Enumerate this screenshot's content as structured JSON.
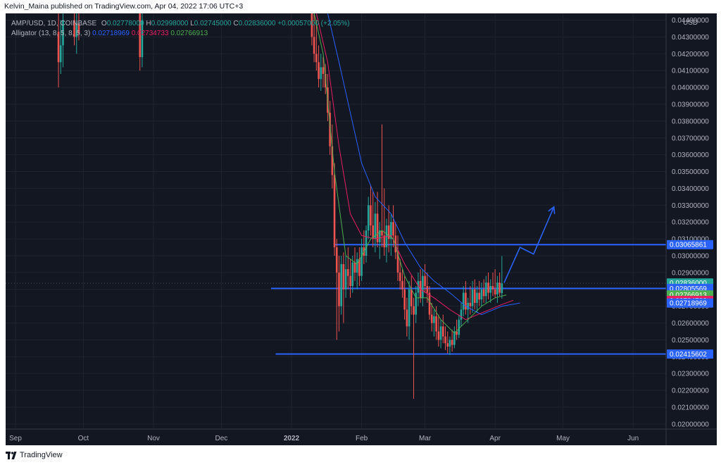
{
  "header": {
    "published": "Kelvin_Maina published on TradingView.com, Apr 04, 2022 17:06 UTC+3"
  },
  "legend": {
    "symbol": "AMP/USD, 1D, COINBASE",
    "open_label": "O",
    "open": "0.02778000",
    "high_label": "H",
    "high": "0.02998000",
    "low_label": "L",
    "low": "0.02745000",
    "close_label": "C",
    "close": "0.02836000",
    "change": "+0.00057000 (+2.05%)",
    "indicator": "Alligator (13, 8, 5, 8, 5, 3)",
    "jaw": "0.02718969",
    "teeth": "0.02734733",
    "lips": "0.02766913"
  },
  "footer": {
    "brand": "TradingView"
  },
  "colors": {
    "background": "#131722",
    "up": "#26a69a",
    "down": "#ef5350",
    "jaw": "#2962ff",
    "teeth": "#e91e63",
    "lips": "#4caf50",
    "drawing": "#2962ff"
  },
  "chart_data": {
    "type": "candlestick",
    "currency": "USD",
    "ylim": [
      0.0197,
      0.0444
    ],
    "ytick_labels": [
      "0.02000000",
      "0.02100000",
      "0.02200000",
      "0.02300000",
      "0.02400000",
      "0.02500000",
      "0.02600000",
      "0.02700000",
      "0.02800000",
      "0.02900000",
      "0.03000000",
      "0.03100000",
      "0.03200000",
      "0.03300000",
      "0.03400000",
      "0.03500000",
      "0.03600000",
      "0.03700000",
      "0.03800000",
      "0.03900000",
      "0.04000000",
      "0.04100000",
      "0.04200000",
      "0.04300000",
      "0.04400000"
    ],
    "x_ticks": [
      {
        "label": "Sep",
        "date": "2021-09-01"
      },
      {
        "label": "Oct",
        "date": "2021-10-01"
      },
      {
        "label": "Nov",
        "date": "2021-11-01"
      },
      {
        "label": "Dec",
        "date": "2021-12-01"
      },
      {
        "label": "2022",
        "date": "2022-01-01"
      },
      {
        "label": "Feb",
        "date": "2022-02-01"
      },
      {
        "label": "Mar",
        "date": "2022-03-01"
      },
      {
        "label": "Apr",
        "date": "2022-04-01"
      },
      {
        "label": "May",
        "date": "2022-05-01"
      },
      {
        "label": "Jun",
        "date": "2022-06-01"
      }
    ],
    "price_labels": [
      {
        "text": "0.03065861",
        "value": 0.03065861,
        "color": "#2962ff"
      },
      {
        "text": "0.02836000",
        "sub": "09:53:12",
        "value": 0.02836,
        "color": "#26a69a"
      },
      {
        "text": "0.02805569",
        "value": 0.02805569,
        "color": "#2962ff"
      },
      {
        "text": "0.02766913",
        "value": 0.02766913,
        "color": "#4caf50"
      },
      {
        "text": "0.02734733",
        "value": 0.02734733,
        "color": "#e91e63"
      },
      {
        "text": "0.02718969",
        "value": 0.02718969,
        "color": "#2962ff"
      },
      {
        "text": "0.02415602",
        "value": 0.02415602,
        "color": "#2962ff"
      }
    ],
    "horizontal_lines": [
      {
        "value": 0.03065861,
        "from": "2022-01-20",
        "to_edge": true
      },
      {
        "value": 0.02805569,
        "from": "2021-12-23",
        "to_edge": true
      },
      {
        "value": 0.02415602,
        "from": "2021-12-25",
        "to_edge": true
      }
    ],
    "projection_path": [
      {
        "date": "2022-04-05",
        "value": 0.0284
      },
      {
        "date": "2022-04-12",
        "value": 0.0305
      },
      {
        "date": "2022-04-18",
        "value": 0.0301
      },
      {
        "date": "2022-04-27",
        "value": 0.0329
      }
    ],
    "candles": [
      {
        "d": "2021-09-20",
        "o": 0.0433,
        "h": 0.0444,
        "l": 0.04,
        "c": 0.0415
      },
      {
        "d": "2021-09-21",
        "o": 0.0415,
        "h": 0.044,
        "l": 0.0408,
        "c": 0.0425
      },
      {
        "d": "2021-09-22",
        "o": 0.0425,
        "h": 0.0444,
        "l": 0.0412,
        "c": 0.044
      },
      {
        "d": "2021-09-27",
        "o": 0.044,
        "h": 0.0444,
        "l": 0.0425,
        "c": 0.043
      },
      {
        "d": "2021-09-28",
        "o": 0.043,
        "h": 0.0444,
        "l": 0.042,
        "c": 0.0438
      },
      {
        "d": "2021-09-29",
        "o": 0.0438,
        "h": 0.0444,
        "l": 0.0428,
        "c": 0.0432
      },
      {
        "d": "2021-10-26",
        "o": 0.0444,
        "h": 0.0444,
        "l": 0.041,
        "c": 0.0418
      },
      {
        "d": "2021-10-27",
        "o": 0.0418,
        "h": 0.0444,
        "l": 0.0412,
        "c": 0.044
      },
      {
        "d": "2022-01-10",
        "o": 0.0444,
        "h": 0.0444,
        "l": 0.0425,
        "c": 0.043
      },
      {
        "d": "2022-01-11",
        "o": 0.043,
        "h": 0.0444,
        "l": 0.0415,
        "c": 0.042
      },
      {
        "d": "2022-01-12",
        "o": 0.042,
        "h": 0.044,
        "l": 0.041,
        "c": 0.0415
      },
      {
        "d": "2022-01-13",
        "o": 0.0415,
        "h": 0.0425,
        "l": 0.04,
        "c": 0.0405
      },
      {
        "d": "2022-01-14",
        "o": 0.0405,
        "h": 0.042,
        "l": 0.0398,
        "c": 0.0412
      },
      {
        "d": "2022-01-15",
        "o": 0.0412,
        "h": 0.0418,
        "l": 0.04,
        "c": 0.0408
      },
      {
        "d": "2022-01-16",
        "o": 0.0408,
        "h": 0.0414,
        "l": 0.0396,
        "c": 0.04
      },
      {
        "d": "2022-01-17",
        "o": 0.04,
        "h": 0.0408,
        "l": 0.038,
        "c": 0.0385
      },
      {
        "d": "2022-01-18",
        "o": 0.0385,
        "h": 0.0392,
        "l": 0.036,
        "c": 0.0365
      },
      {
        "d": "2022-01-19",
        "o": 0.0365,
        "h": 0.0378,
        "l": 0.034,
        "c": 0.0348
      },
      {
        "d": "2022-01-20",
        "o": 0.0348,
        "h": 0.0355,
        "l": 0.03,
        "c": 0.0305
      },
      {
        "d": "2022-01-21",
        "o": 0.0305,
        "h": 0.031,
        "l": 0.025,
        "c": 0.029
      },
      {
        "d": "2022-01-22",
        "o": 0.029,
        "h": 0.03,
        "l": 0.0255,
        "c": 0.027
      },
      {
        "d": "2022-01-23",
        "o": 0.027,
        "h": 0.03,
        "l": 0.0265,
        "c": 0.0295
      },
      {
        "d": "2022-01-24",
        "o": 0.0295,
        "h": 0.0302,
        "l": 0.026,
        "c": 0.028
      },
      {
        "d": "2022-01-25",
        "o": 0.028,
        "h": 0.03,
        "l": 0.0275,
        "c": 0.0292
      },
      {
        "d": "2022-01-26",
        "o": 0.0292,
        "h": 0.0305,
        "l": 0.028,
        "c": 0.0288
      },
      {
        "d": "2022-01-27",
        "o": 0.0288,
        "h": 0.0298,
        "l": 0.0275,
        "c": 0.0282
      },
      {
        "d": "2022-01-28",
        "o": 0.0282,
        "h": 0.03,
        "l": 0.0278,
        "c": 0.0296
      },
      {
        "d": "2022-01-29",
        "o": 0.0296,
        "h": 0.0305,
        "l": 0.0285,
        "c": 0.029
      },
      {
        "d": "2022-01-30",
        "o": 0.029,
        "h": 0.0302,
        "l": 0.028,
        "c": 0.0298
      },
      {
        "d": "2022-01-31",
        "o": 0.0298,
        "h": 0.0305,
        "l": 0.0282,
        "c": 0.0288
      },
      {
        "d": "2022-02-01",
        "o": 0.0288,
        "h": 0.031,
        "l": 0.0285,
        "c": 0.0305
      },
      {
        "d": "2022-02-02",
        "o": 0.0305,
        "h": 0.0315,
        "l": 0.0295,
        "c": 0.03
      },
      {
        "d": "2022-02-03",
        "o": 0.03,
        "h": 0.0318,
        "l": 0.0296,
        "c": 0.0315
      },
      {
        "d": "2022-02-04",
        "o": 0.0315,
        "h": 0.0335,
        "l": 0.031,
        "c": 0.033
      },
      {
        "d": "2022-02-05",
        "o": 0.033,
        "h": 0.0342,
        "l": 0.0312,
        "c": 0.0318
      },
      {
        "d": "2022-02-06",
        "o": 0.0318,
        "h": 0.0338,
        "l": 0.0305,
        "c": 0.031
      },
      {
        "d": "2022-02-07",
        "o": 0.031,
        "h": 0.0332,
        "l": 0.0302,
        "c": 0.0325
      },
      {
        "d": "2022-02-08",
        "o": 0.0325,
        "h": 0.0338,
        "l": 0.0305,
        "c": 0.0308
      },
      {
        "d": "2022-02-09",
        "o": 0.0308,
        "h": 0.032,
        "l": 0.0298,
        "c": 0.0315
      },
      {
        "d": "2022-02-10",
        "o": 0.0315,
        "h": 0.0378,
        "l": 0.0305,
        "c": 0.0312
      },
      {
        "d": "2022-02-11",
        "o": 0.0312,
        "h": 0.034,
        "l": 0.03,
        "c": 0.0305
      },
      {
        "d": "2022-02-12",
        "o": 0.0305,
        "h": 0.0322,
        "l": 0.0296,
        "c": 0.0318
      },
      {
        "d": "2022-02-13",
        "o": 0.0318,
        "h": 0.033,
        "l": 0.0302,
        "c": 0.031
      },
      {
        "d": "2022-02-14",
        "o": 0.031,
        "h": 0.0325,
        "l": 0.03,
        "c": 0.032
      },
      {
        "d": "2022-02-15",
        "o": 0.032,
        "h": 0.033,
        "l": 0.0305,
        "c": 0.0312
      },
      {
        "d": "2022-02-16",
        "o": 0.0312,
        "h": 0.032,
        "l": 0.0298,
        "c": 0.0302
      },
      {
        "d": "2022-02-17",
        "o": 0.0302,
        "h": 0.0312,
        "l": 0.0285,
        "c": 0.029
      },
      {
        "d": "2022-02-18",
        "o": 0.029,
        "h": 0.0298,
        "l": 0.028,
        "c": 0.0285
      },
      {
        "d": "2022-02-19",
        "o": 0.0285,
        "h": 0.0292,
        "l": 0.0275,
        "c": 0.028
      },
      {
        "d": "2022-02-20",
        "o": 0.028,
        "h": 0.0288,
        "l": 0.0262,
        "c": 0.0268
      },
      {
        "d": "2022-02-21",
        "o": 0.0268,
        "h": 0.0275,
        "l": 0.0252,
        "c": 0.0258
      },
      {
        "d": "2022-02-22",
        "o": 0.0258,
        "h": 0.0285,
        "l": 0.025,
        "c": 0.028
      },
      {
        "d": "2022-02-23",
        "o": 0.028,
        "h": 0.0288,
        "l": 0.0265,
        "c": 0.027
      },
      {
        "d": "2022-02-24",
        "o": 0.027,
        "h": 0.0275,
        "l": 0.0215,
        "c": 0.0265
      },
      {
        "d": "2022-02-25",
        "o": 0.0265,
        "h": 0.0282,
        "l": 0.026,
        "c": 0.0278
      },
      {
        "d": "2022-02-26",
        "o": 0.0278,
        "h": 0.029,
        "l": 0.027,
        "c": 0.0285
      },
      {
        "d": "2022-02-27",
        "o": 0.0285,
        "h": 0.0292,
        "l": 0.0272,
        "c": 0.0275
      },
      {
        "d": "2022-02-28",
        "o": 0.0275,
        "h": 0.0292,
        "l": 0.027,
        "c": 0.0288
      },
      {
        "d": "2022-03-01",
        "o": 0.0288,
        "h": 0.0295,
        "l": 0.0278,
        "c": 0.0282
      },
      {
        "d": "2022-03-02",
        "o": 0.0282,
        "h": 0.029,
        "l": 0.0272,
        "c": 0.0278
      },
      {
        "d": "2022-03-03",
        "o": 0.0278,
        "h": 0.0282,
        "l": 0.0262,
        "c": 0.0265
      },
      {
        "d": "2022-03-04",
        "o": 0.0265,
        "h": 0.0272,
        "l": 0.0255,
        "c": 0.026
      },
      {
        "d": "2022-03-05",
        "o": 0.026,
        "h": 0.0268,
        "l": 0.0252,
        "c": 0.0264
      },
      {
        "d": "2022-03-06",
        "o": 0.0264,
        "h": 0.027,
        "l": 0.025,
        "c": 0.0255
      },
      {
        "d": "2022-03-07",
        "o": 0.0255,
        "h": 0.0265,
        "l": 0.0246,
        "c": 0.025
      },
      {
        "d": "2022-03-08",
        "o": 0.025,
        "h": 0.0262,
        "l": 0.0245,
        "c": 0.0258
      },
      {
        "d": "2022-03-09",
        "o": 0.0258,
        "h": 0.0265,
        "l": 0.0248,
        "c": 0.0252
      },
      {
        "d": "2022-03-10",
        "o": 0.0252,
        "h": 0.0258,
        "l": 0.0244,
        "c": 0.0248
      },
      {
        "d": "2022-03-11",
        "o": 0.0248,
        "h": 0.0255,
        "l": 0.0242,
        "c": 0.0246
      },
      {
        "d": "2022-03-12",
        "o": 0.0246,
        "h": 0.0252,
        "l": 0.0241,
        "c": 0.025
      },
      {
        "d": "2022-03-13",
        "o": 0.025,
        "h": 0.0256,
        "l": 0.0243,
        "c": 0.0247
      },
      {
        "d": "2022-03-14",
        "o": 0.0247,
        "h": 0.0258,
        "l": 0.0245,
        "c": 0.0255
      },
      {
        "d": "2022-03-15",
        "o": 0.0255,
        "h": 0.0262,
        "l": 0.025,
        "c": 0.0253
      },
      {
        "d": "2022-03-16",
        "o": 0.0253,
        "h": 0.0265,
        "l": 0.0251,
        "c": 0.0262
      },
      {
        "d": "2022-03-17",
        "o": 0.0262,
        "h": 0.0272,
        "l": 0.0258,
        "c": 0.0268
      },
      {
        "d": "2022-03-18",
        "o": 0.0268,
        "h": 0.0282,
        "l": 0.0264,
        "c": 0.0278
      },
      {
        "d": "2022-03-19",
        "o": 0.0278,
        "h": 0.0285,
        "l": 0.0265,
        "c": 0.0268
      },
      {
        "d": "2022-03-20",
        "o": 0.0268,
        "h": 0.0275,
        "l": 0.026,
        "c": 0.0272
      },
      {
        "d": "2022-03-21",
        "o": 0.0272,
        "h": 0.0282,
        "l": 0.0265,
        "c": 0.027
      },
      {
        "d": "2022-03-22",
        "o": 0.027,
        "h": 0.0285,
        "l": 0.0266,
        "c": 0.028
      },
      {
        "d": "2022-03-23",
        "o": 0.028,
        "h": 0.0286,
        "l": 0.0268,
        "c": 0.0272
      },
      {
        "d": "2022-03-24",
        "o": 0.0272,
        "h": 0.0282,
        "l": 0.0266,
        "c": 0.0278
      },
      {
        "d": "2022-03-25",
        "o": 0.0278,
        "h": 0.0285,
        "l": 0.027,
        "c": 0.0274
      },
      {
        "d": "2022-03-26",
        "o": 0.0274,
        "h": 0.0284,
        "l": 0.027,
        "c": 0.028
      },
      {
        "d": "2022-03-27",
        "o": 0.028,
        "h": 0.0286,
        "l": 0.0272,
        "c": 0.0276
      },
      {
        "d": "2022-03-28",
        "o": 0.0276,
        "h": 0.0288,
        "l": 0.0272,
        "c": 0.0284
      },
      {
        "d": "2022-03-29",
        "o": 0.0284,
        "h": 0.029,
        "l": 0.0274,
        "c": 0.0278
      },
      {
        "d": "2022-03-30",
        "o": 0.0278,
        "h": 0.0286,
        "l": 0.0272,
        "c": 0.0282
      },
      {
        "d": "2022-03-31",
        "o": 0.0282,
        "h": 0.029,
        "l": 0.0276,
        "c": 0.028
      },
      {
        "d": "2022-04-01",
        "o": 0.028,
        "h": 0.0292,
        "l": 0.0275,
        "c": 0.0277
      },
      {
        "d": "2022-04-02",
        "o": 0.0277,
        "h": 0.0288,
        "l": 0.0272,
        "c": 0.0284
      },
      {
        "d": "2022-04-03",
        "o": 0.0284,
        "h": 0.029,
        "l": 0.0276,
        "c": 0.0278
      },
      {
        "d": "2022-04-04",
        "o": 0.02778,
        "h": 0.02998,
        "l": 0.02745,
        "c": 0.02836
      }
    ],
    "alligator": {
      "jaw": {
        "name": "Jaw",
        "points": [
          {
            "d": "2022-01-17",
            "v": 0.0444
          },
          {
            "d": "2022-01-22",
            "v": 0.0415
          },
          {
            "d": "2022-01-27",
            "v": 0.0385
          },
          {
            "d": "2022-02-01",
            "v": 0.0355
          },
          {
            "d": "2022-02-07",
            "v": 0.0335
          },
          {
            "d": "2022-02-14",
            "v": 0.0325
          },
          {
            "d": "2022-02-20",
            "v": 0.0308
          },
          {
            "d": "2022-02-27",
            "v": 0.0293
          },
          {
            "d": "2022-03-05",
            "v": 0.0285
          },
          {
            "d": "2022-03-12",
            "v": 0.0278
          },
          {
            "d": "2022-03-19",
            "v": 0.027
          },
          {
            "d": "2022-03-26",
            "v": 0.0265
          },
          {
            "d": "2022-04-04",
            "v": 0.027
          },
          {
            "d": "2022-04-12",
            "v": 0.02719
          }
        ]
      },
      "teeth": {
        "name": "Teeth",
        "points": [
          {
            "d": "2022-01-12",
            "v": 0.0444
          },
          {
            "d": "2022-01-17",
            "v": 0.0415
          },
          {
            "d": "2022-01-22",
            "v": 0.0365
          },
          {
            "d": "2022-01-27",
            "v": 0.0325
          },
          {
            "d": "2022-02-01",
            "v": 0.0312
          },
          {
            "d": "2022-02-07",
            "v": 0.031
          },
          {
            "d": "2022-02-14",
            "v": 0.0312
          },
          {
            "d": "2022-02-20",
            "v": 0.0295
          },
          {
            "d": "2022-02-27",
            "v": 0.028
          },
          {
            "d": "2022-03-05",
            "v": 0.0275
          },
          {
            "d": "2022-03-12",
            "v": 0.0268
          },
          {
            "d": "2022-03-19",
            "v": 0.0262
          },
          {
            "d": "2022-03-26",
            "v": 0.0266
          },
          {
            "d": "2022-04-04",
            "v": 0.0271
          },
          {
            "d": "2022-04-09",
            "v": 0.02735
          }
        ]
      },
      "lips": {
        "name": "Lips",
        "points": [
          {
            "d": "2022-01-11",
            "v": 0.0444
          },
          {
            "d": "2022-01-15",
            "v": 0.042
          },
          {
            "d": "2022-01-20",
            "v": 0.035
          },
          {
            "d": "2022-01-25",
            "v": 0.03
          },
          {
            "d": "2022-01-30",
            "v": 0.0295
          },
          {
            "d": "2022-02-05",
            "v": 0.031
          },
          {
            "d": "2022-02-10",
            "v": 0.0315
          },
          {
            "d": "2022-02-15",
            "v": 0.031
          },
          {
            "d": "2022-02-20",
            "v": 0.0288
          },
          {
            "d": "2022-02-25",
            "v": 0.0275
          },
          {
            "d": "2022-03-02",
            "v": 0.0275
          },
          {
            "d": "2022-03-08",
            "v": 0.0262
          },
          {
            "d": "2022-03-14",
            "v": 0.0254
          },
          {
            "d": "2022-03-20",
            "v": 0.0262
          },
          {
            "d": "2022-03-26",
            "v": 0.027
          },
          {
            "d": "2022-04-01",
            "v": 0.0275
          },
          {
            "d": "2022-04-06",
            "v": 0.02767
          }
        ]
      }
    }
  }
}
